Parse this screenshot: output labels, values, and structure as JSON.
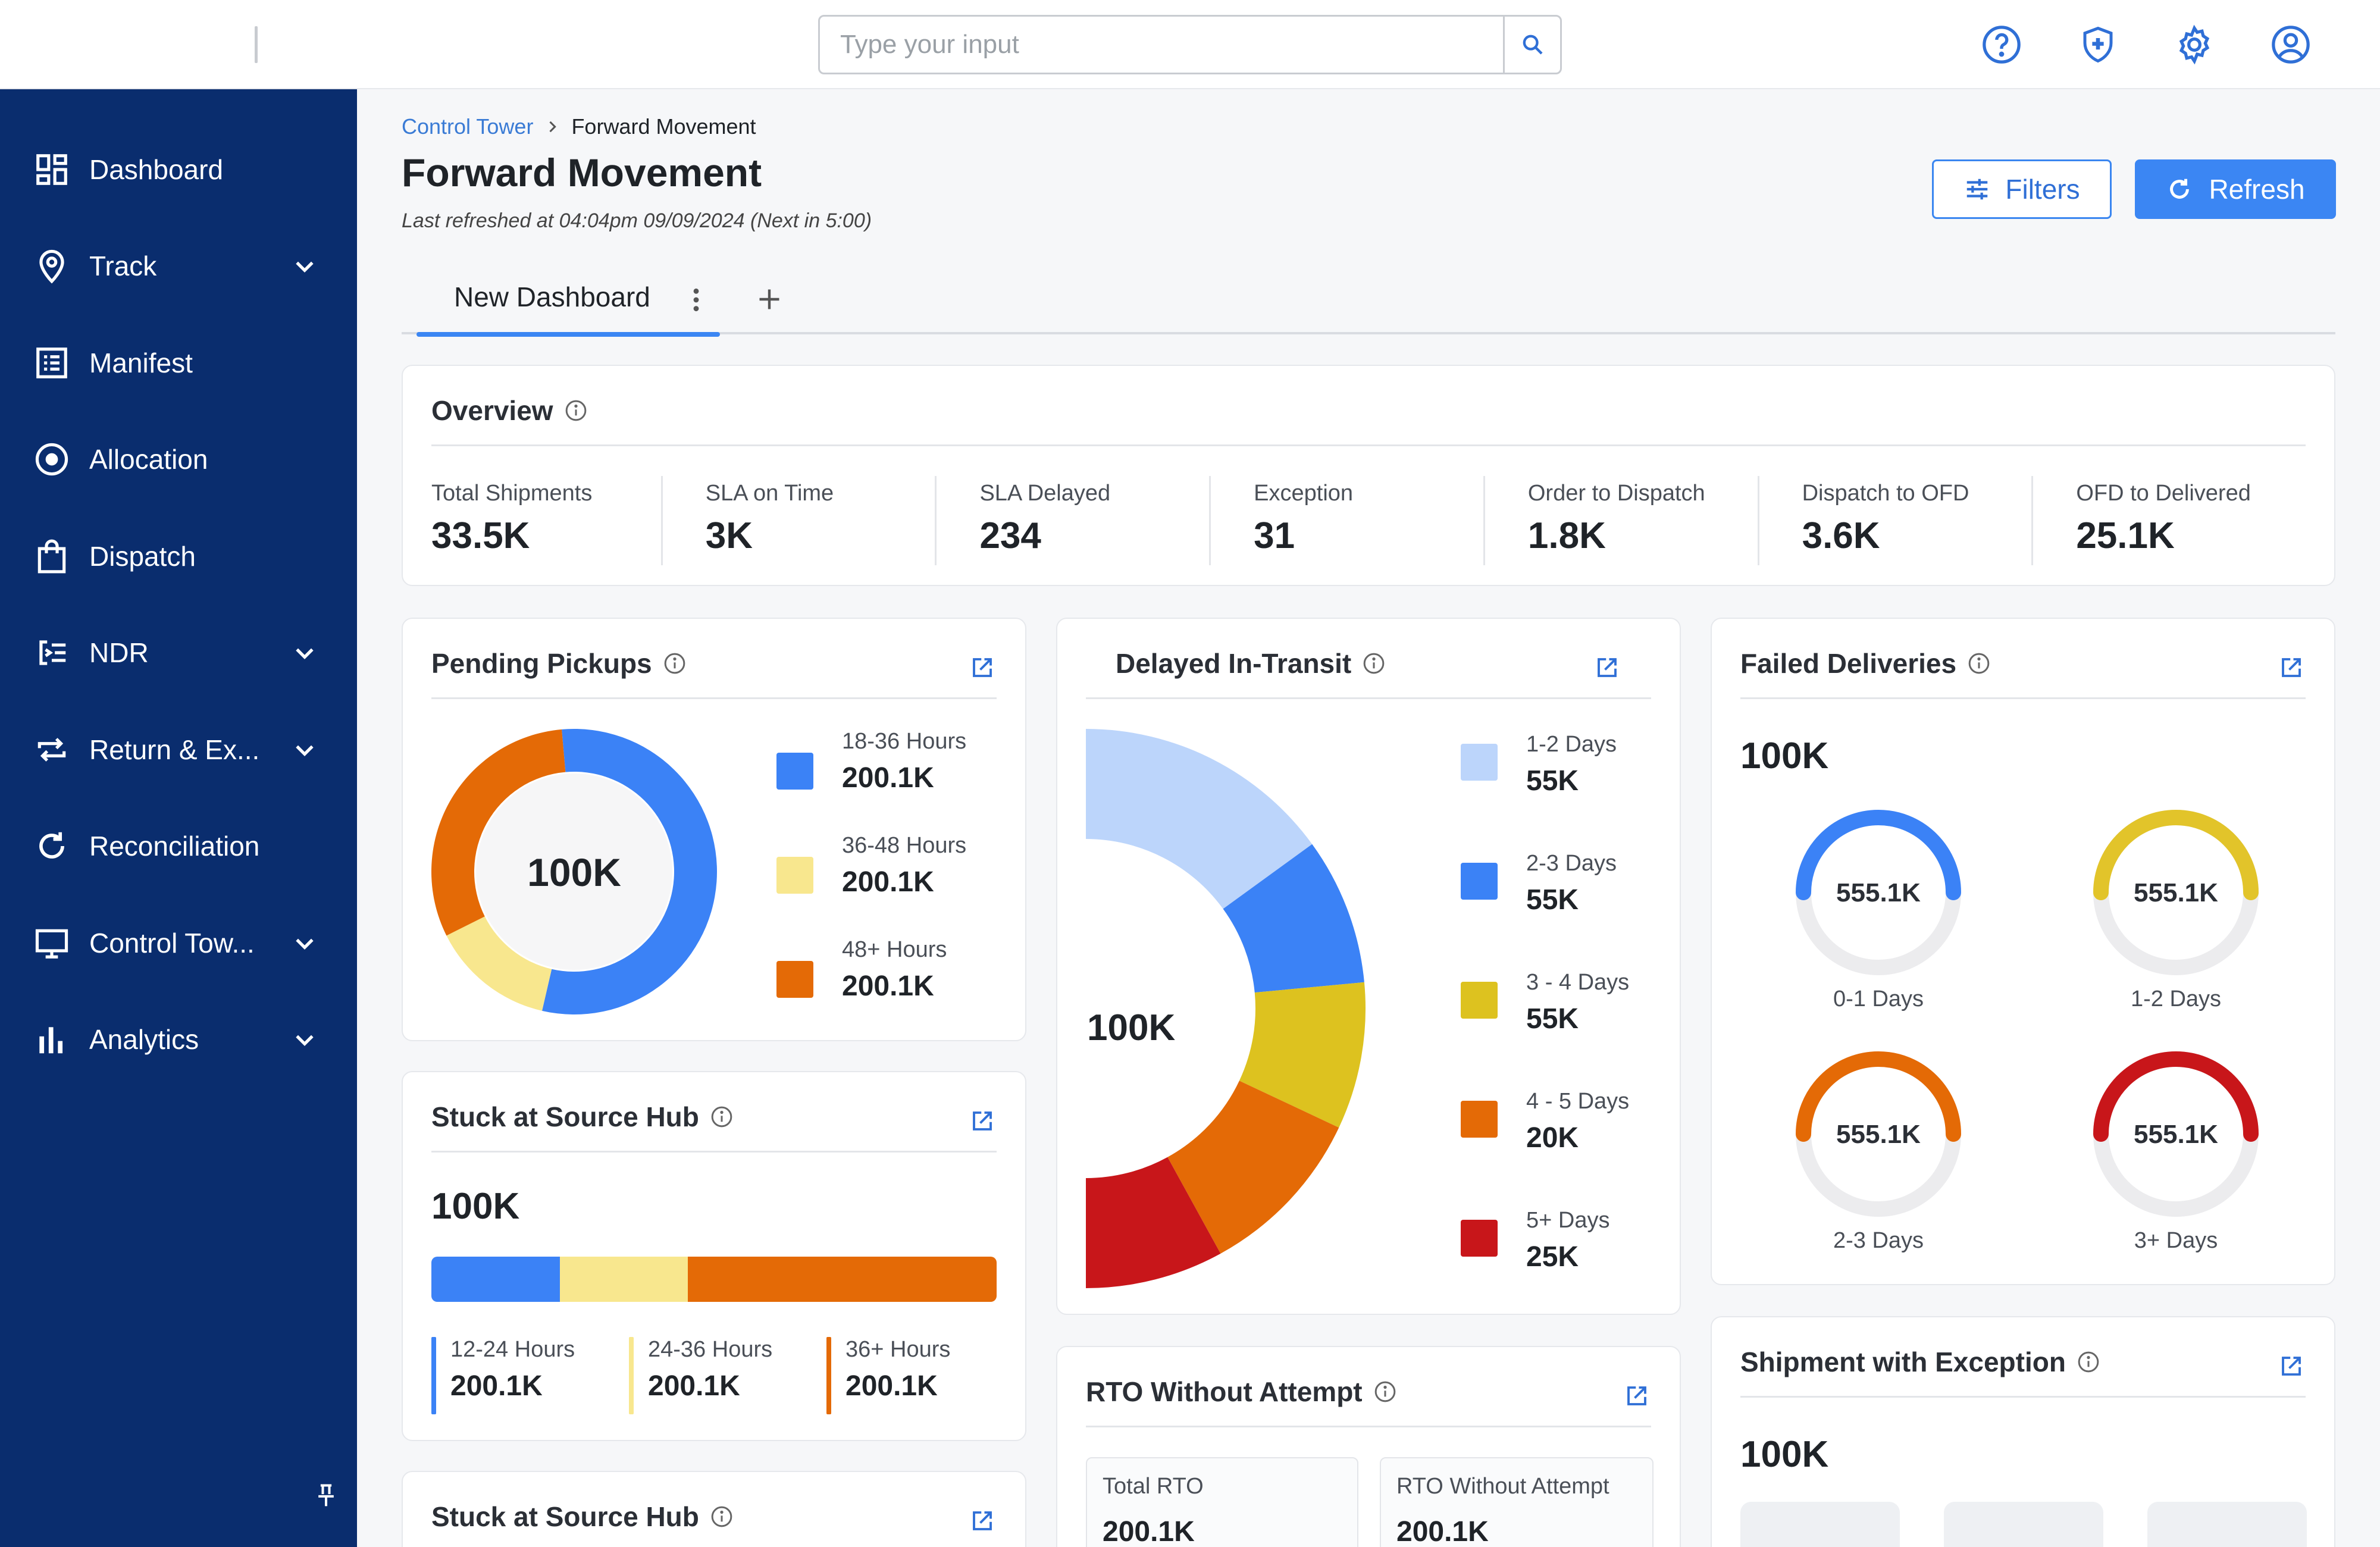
{
  "search": {
    "placeholder": "Type your input"
  },
  "header_icons": [
    "help-circle-icon",
    "shield-plus-icon",
    "gear-icon",
    "user-circle-icon"
  ],
  "sidebar": {
    "items": [
      {
        "label": "Dashboard",
        "icon": "dashboard-icon",
        "expandable": false
      },
      {
        "label": "Track",
        "icon": "location-pin-icon",
        "expandable": true
      },
      {
        "label": "Manifest",
        "icon": "list-icon",
        "expandable": false
      },
      {
        "label": "Allocation",
        "icon": "target-icon",
        "expandable": false
      },
      {
        "label": "Dispatch",
        "icon": "bag-icon",
        "expandable": false
      },
      {
        "label": "NDR",
        "icon": "ndr-list-icon",
        "expandable": true
      },
      {
        "label": "Return & Ex...",
        "icon": "return-arrows-icon",
        "expandable": true
      },
      {
        "label": "Reconciliation",
        "icon": "refresh-icon",
        "expandable": false
      },
      {
        "label": "Control Tow...",
        "icon": "monitor-icon",
        "expandable": true
      },
      {
        "label": "Analytics",
        "icon": "bar-chart-icon",
        "expandable": true
      }
    ]
  },
  "breadcrumb": {
    "parent": "Control Tower",
    "current": "Forward Movement"
  },
  "page": {
    "title": "Forward Movement",
    "refresh_note": "Last refreshed at 04:04pm 09/09/2024 (Next in 5:00)"
  },
  "toolbar": {
    "filters_label": "Filters",
    "refresh_label": "Refresh"
  },
  "tabs": {
    "active_label": "New Dashboard"
  },
  "overview": {
    "title": "Overview",
    "stats": [
      {
        "label": "Total Shipments",
        "value": "33.5K"
      },
      {
        "label": "SLA on Time",
        "value": "3K"
      },
      {
        "label": "SLA Delayed",
        "value": "234"
      },
      {
        "label": "Exception",
        "value": "31"
      },
      {
        "label": "Order to Dispatch",
        "value": "1.8K"
      },
      {
        "label": "Dispatch to OFD",
        "value": "3.6K"
      },
      {
        "label": "OFD to Delivered",
        "value": "25.1K"
      }
    ]
  },
  "pending_pickups": {
    "title": "Pending Pickups",
    "total": "100K",
    "legend": [
      {
        "label": "18-36 Hours",
        "value": "200.1K",
        "color": "#3b82f6"
      },
      {
        "label": "36-48 Hours",
        "value": "200.1K",
        "color": "#f8e78e"
      },
      {
        "label": "48+ Hours",
        "value": "200.1K",
        "color": "#e46a06"
      }
    ],
    "slice_fractions": [
      0.55,
      0.14,
      0.31
    ]
  },
  "delayed_in_transit": {
    "title": "Delayed In-Transit",
    "total": "100K",
    "legend": [
      {
        "label": "1-2 Days",
        "value": "55K",
        "color": "#bcd5fb"
      },
      {
        "label": "2-3 Days",
        "value": "55K",
        "color": "#3b82f6"
      },
      {
        "label": "3 - 4 Days",
        "value": "55K",
        "color": "#ddc21f"
      },
      {
        "label": "4 - 5 Days",
        "value": "20K",
        "color": "#e46a06"
      },
      {
        "label": "5+ Days",
        "value": "25K",
        "color": "#c8161a"
      }
    ],
    "slice_fractions": [
      0.3,
      0.17,
      0.17,
      0.2,
      0.16
    ]
  },
  "failed_deliveries": {
    "title": "Failed Deliveries",
    "total": "100K",
    "gauges": [
      {
        "label": "0-1 Days",
        "value": "555.1K",
        "color": "#3b82f6",
        "fraction": 0.5
      },
      {
        "label": "1-2 Days",
        "value": "555.1K",
        "color": "#e2c42a",
        "fraction": 0.5
      },
      {
        "label": "2-3 Days",
        "value": "555.1K",
        "color": "#e46a06",
        "fraction": 0.5
      },
      {
        "label": "3+ Days",
        "value": "555.1K",
        "color": "#c8161a",
        "fraction": 0.5
      }
    ]
  },
  "stuck_source_hub": {
    "title": "Stuck at Source Hub",
    "total": "100K",
    "segments": [
      {
        "label": "12-24 Hours",
        "value": "200.1K",
        "color": "#3b82f6",
        "fraction": 0.227
      },
      {
        "label": "24-36 Hours",
        "value": "200.1K",
        "color": "#f8e78e",
        "fraction": 0.227
      },
      {
        "label": "36+ Hours",
        "value": "200.1K",
        "color": "#e46a06",
        "fraction": 0.546
      }
    ]
  },
  "stuck_source_hub_2": {
    "title": "Stuck at Source Hub"
  },
  "rto_without_attempt": {
    "title": "RTO Without Attempt",
    "stats": [
      {
        "label": "Total RTO",
        "value": "200.1K"
      },
      {
        "label": "RTO Without Attempt",
        "value": "200.1K"
      }
    ]
  },
  "shipment_exception": {
    "title": "Shipment with Exception",
    "total": "100K"
  }
}
